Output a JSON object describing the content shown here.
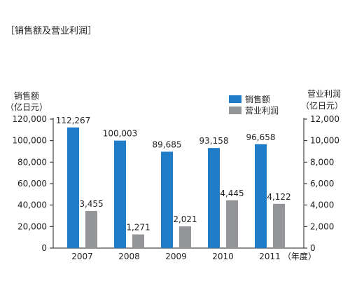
{
  "chart_data": {
    "type": "bar",
    "title": "［销售额及营业利润］",
    "categories": [
      "2007",
      "2008",
      "2009",
      "2010",
      "2011"
    ],
    "x_unit": "（年度）",
    "series": [
      {
        "name": "销售额",
        "axis": "left",
        "color": "#1f7cc8",
        "values": [
          112267,
          100003,
          89685,
          93158,
          96658
        ],
        "labels": [
          "112,267",
          "100,003",
          "89,685",
          "93,158",
          "96,658"
        ]
      },
      {
        "name": "营业利润",
        "axis": "right",
        "color": "#939598",
        "values": [
          3455,
          1271,
          2021,
          4445,
          4122
        ],
        "labels": [
          "3,455",
          "1,271",
          "2,021",
          "4,445",
          "4,122"
        ]
      }
    ],
    "left_axis": {
      "label": "销售额",
      "unit": "（亿日元）",
      "ylim": [
        0,
        120000
      ],
      "ticks": [
        {
          "value": 0,
          "label": "0"
        },
        {
          "value": 20000,
          "label": "20,000"
        },
        {
          "value": 40000,
          "label": "40,000"
        },
        {
          "value": 60000,
          "label": "60,000"
        },
        {
          "value": 80000,
          "label": "80,000"
        },
        {
          "value": 100000,
          "label": "100,000"
        },
        {
          "value": 120000,
          "label": "120,000"
        }
      ]
    },
    "right_axis": {
      "label": "营业利润",
      "unit": "（亿日元）",
      "ylim": [
        0,
        12000
      ],
      "ticks": [
        {
          "value": 0,
          "label": "0"
        },
        {
          "value": 2000,
          "label": "2,000"
        },
        {
          "value": 4000,
          "label": "4,000"
        },
        {
          "value": 6000,
          "label": "6,000"
        },
        {
          "value": 8000,
          "label": "8,000"
        },
        {
          "value": 10000,
          "label": "10,000"
        },
        {
          "value": 12000,
          "label": "12,000"
        }
      ]
    },
    "legend_position": "top-right",
    "grid": false
  }
}
